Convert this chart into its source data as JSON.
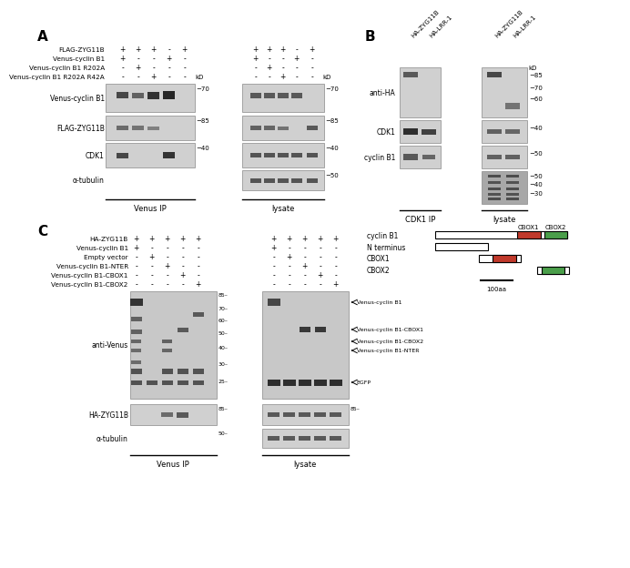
{
  "fig_width": 6.5,
  "fig_height": 5.9,
  "bg_color": "#ffffff",
  "panel_A": {
    "label": "A",
    "row_labels": [
      "FLAG-ZYG11B",
      "Venus-cyclin B1",
      "Venus-cyclin B1 R202A",
      "Venus-cyclin B1 R202A R42A"
    ],
    "ip_matrix": [
      [
        "+",
        "+",
        "+",
        "-",
        "+"
      ],
      [
        "+",
        "-",
        "-",
        "+",
        "-"
      ],
      [
        "-",
        "+",
        "-",
        "-",
        "-"
      ],
      [
        "-",
        "-",
        "+",
        "-",
        "-"
      ]
    ],
    "lys_matrix": [
      [
        "+",
        "+",
        "+",
        "-",
        "+"
      ],
      [
        "+",
        "-",
        "-",
        "+",
        "-"
      ],
      [
        "-",
        "+",
        "-",
        "-",
        "-"
      ],
      [
        "-",
        "-",
        "+",
        "-",
        "-"
      ]
    ],
    "blot_labels": [
      "Venus-cyclin B1",
      "FLAG-ZYG11B",
      "CDK1",
      "α-tubulin"
    ],
    "blot_kd": [
      "70",
      "85",
      "40",
      "50"
    ],
    "section_labels": [
      "Venus IP",
      "lysate"
    ]
  },
  "panel_B": {
    "label": "B",
    "col_labels": [
      "HA-ZYG11B",
      "HA-LRR-1",
      "HA-ZYG11B",
      "HA-LRR-1"
    ],
    "blot_labels": [
      "anti-HA",
      "CDK1",
      "cyclin B1",
      ""
    ],
    "blot_kd_right": [
      [
        "85",
        "70",
        "60"
      ],
      [
        "40"
      ],
      [
        "50"
      ],
      [
        "50",
        "40",
        "30"
      ]
    ],
    "section_labels": [
      "CDK1 IP",
      "lysate"
    ]
  },
  "panel_C": {
    "label": "C",
    "row_labels": [
      "HA-ZYG11B",
      "Venus-cyclin B1",
      "Empty vector",
      "Venus-cyclin B1-NTER",
      "Venus-cyclin B1-CBOX1",
      "Venus-cyclin B1-CBOX2"
    ],
    "ip_matrix": [
      [
        "+",
        "+",
        "+",
        "+",
        "+"
      ],
      [
        "+",
        "-",
        "-",
        "-",
        "-"
      ],
      [
        "-",
        "+",
        "-",
        "-",
        "-"
      ],
      [
        "-",
        "-",
        "+",
        "-",
        "-"
      ],
      [
        "-",
        "-",
        "-",
        "+",
        "-"
      ],
      [
        "-",
        "-",
        "-",
        "-",
        "+"
      ]
    ],
    "lys_matrix": [
      [
        "+",
        "+",
        "+",
        "+",
        "+"
      ],
      [
        "+",
        "-",
        "-",
        "-",
        "-"
      ],
      [
        "-",
        "+",
        "-",
        "-",
        "-"
      ],
      [
        "-",
        "-",
        "+",
        "-",
        "-"
      ],
      [
        "-",
        "-",
        "-",
        "+",
        "-"
      ],
      [
        "-",
        "-",
        "-",
        "-",
        "+"
      ]
    ],
    "blot_labels": [
      "anti-Venus",
      "HA-ZYG11B",
      "α-tubulin"
    ],
    "blot_kd": [
      [
        "85",
        "70",
        "60",
        "50",
        "40",
        "30",
        "25"
      ],
      [
        "85"
      ],
      [
        "50"
      ]
    ],
    "arrow_labels": [
      "Venus-cyclin B1",
      "Venus-cyclin B1-CBOX1",
      "Venus-cyclin B1-CBOX2\nVenus-cyclin B1-NTER",
      "EGFP"
    ],
    "section_labels": [
      "Venus IP",
      "lysate"
    ],
    "diag_labels": [
      "cyclin B1",
      "N terminus",
      "CBOX1",
      "CBOX2"
    ],
    "cbox1_color": "#c0392b",
    "cbox2_color": "#4a9e4a"
  }
}
